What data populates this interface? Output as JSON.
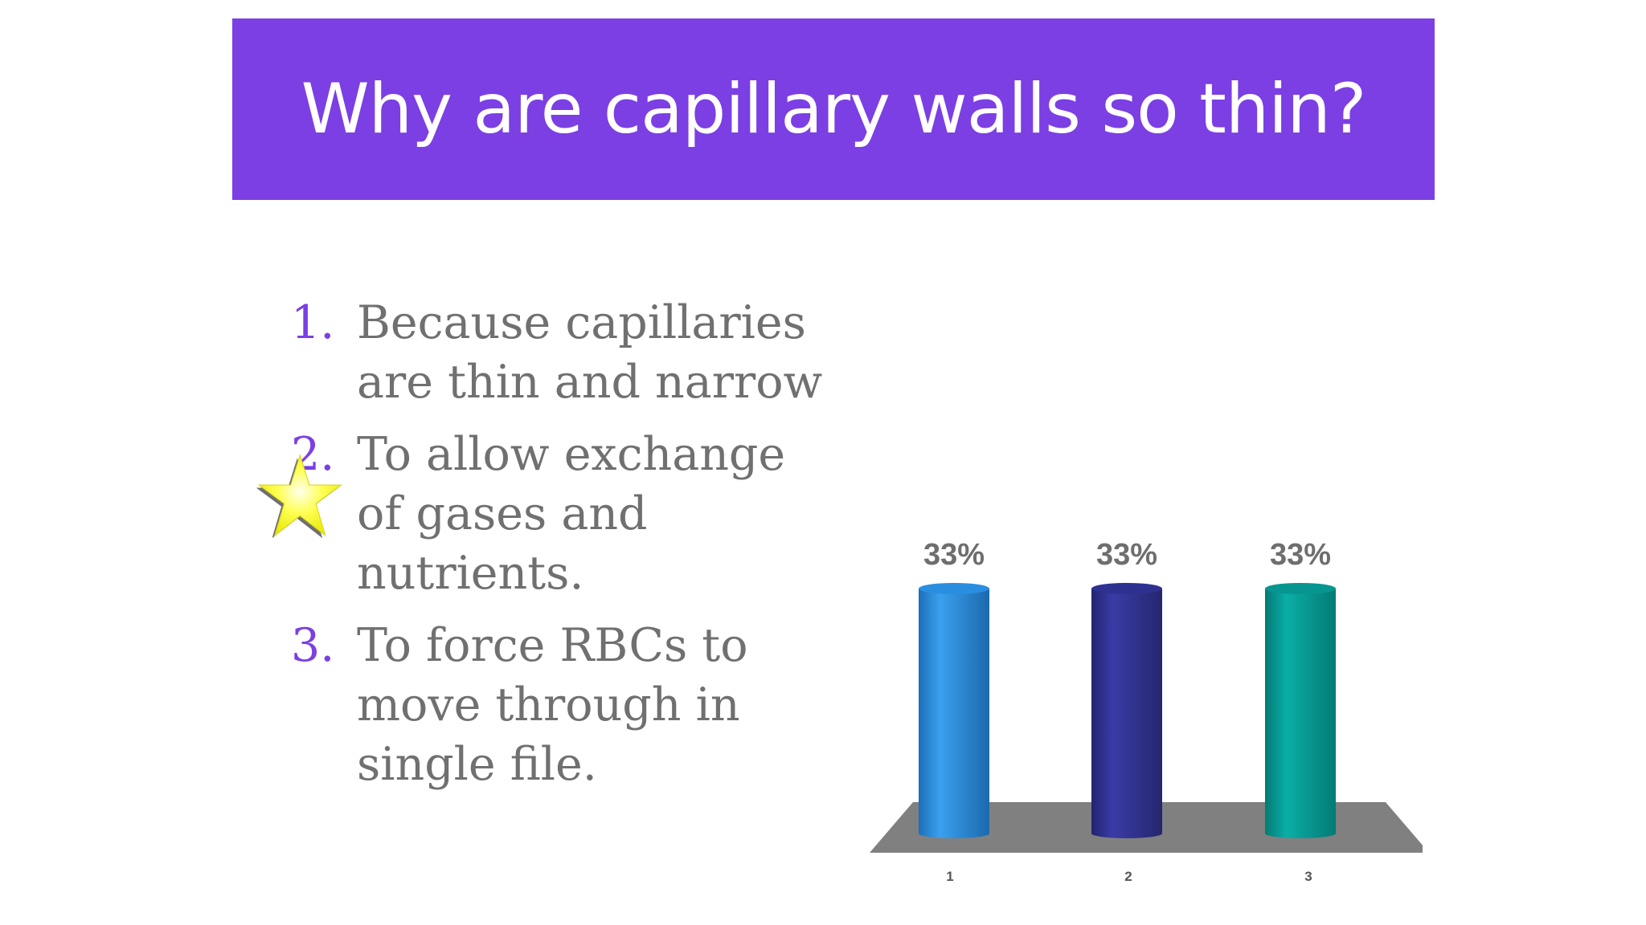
{
  "slide": {
    "title": "Why are capillary walls so thin?",
    "answers": [
      {
        "number": "1.",
        "text": "Because capillaries are thin and narrow"
      },
      {
        "number": "2.",
        "text": "To allow exchange of gases and nutrients."
      },
      {
        "number": "3.",
        "text": "To force RBCs to move through in single file."
      }
    ],
    "correct_marker_icon": "star-icon",
    "colors": {
      "banner": "#7b3fe4",
      "number": "#7b3fe4",
      "text": "#707070",
      "star": "#ffff33"
    }
  },
  "chart_data": {
    "type": "bar",
    "categories": [
      "1",
      "2",
      "3"
    ],
    "values": [
      33,
      33,
      33
    ],
    "value_labels": [
      "33%",
      "33%",
      "33%"
    ],
    "ylim": [
      0,
      33
    ],
    "colors": [
      "#2a8ee0",
      "#2f3191",
      "#06968f"
    ],
    "floor_color": "#808080",
    "grid": false
  }
}
